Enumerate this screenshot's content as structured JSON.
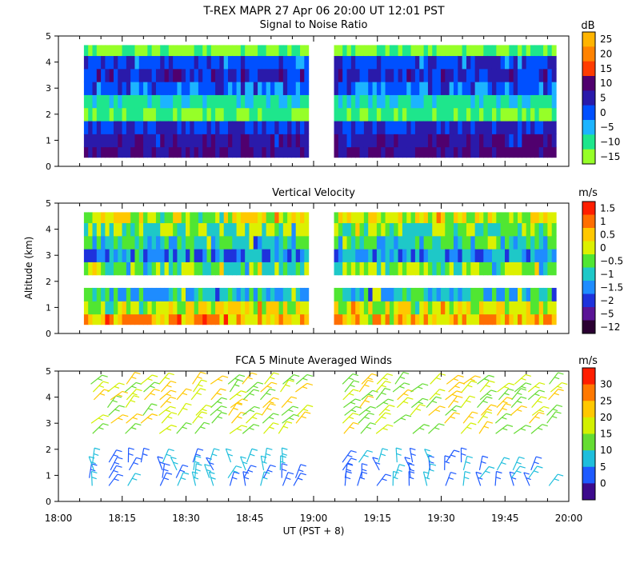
{
  "header": {
    "title": "T-REX   MAPR 27 Apr 06   20:00 UT   12:01   PST"
  },
  "shared_axes": {
    "x_label": "UT  (PST + 8)",
    "x_range_hours": [
      18.0,
      20.0
    ],
    "x_tick_labels": [
      "18:00",
      "18:15",
      "18:30",
      "18:45",
      "19:00",
      "19:15",
      "19:30",
      "19:45",
      "20:00"
    ],
    "x_tick_values": [
      18.0,
      18.25,
      18.5,
      18.75,
      19.0,
      19.25,
      19.5,
      19.75,
      20.0
    ],
    "y_label": "Altitude (km)",
    "y_range": [
      0,
      5
    ],
    "y_tick_labels": [
      "0",
      "1",
      "2",
      "3",
      "4",
      "5"
    ],
    "data_gap_hours": [
      18.98,
      19.08
    ]
  },
  "chart_data": [
    {
      "type": "heatmap",
      "title": "Signal to Noise Ratio",
      "units": "dB",
      "colorbar_labels": [
        "25",
        "20",
        "15",
        "10",
        "5",
        "0",
        "−5",
        "−10",
        "−15"
      ],
      "colorbar_values": [
        25,
        20,
        15,
        10,
        5,
        0,
        -5,
        -10,
        -15
      ],
      "colorbar_colors": [
        "#ffb400",
        "#ff8200",
        "#ff3c00",
        "#50006e",
        "#2a1aaa",
        "#0050ff",
        "#1cb4ff",
        "#1ee68c",
        "#96ff28"
      ],
      "profile": [
        {
          "alt_km": 0.5,
          "value": 8
        },
        {
          "alt_km": 1.0,
          "value": 6
        },
        {
          "alt_km": 1.5,
          "value": 3
        },
        {
          "alt_km": 2.0,
          "value": -12
        },
        {
          "alt_km": 2.5,
          "value": -8
        },
        {
          "alt_km": 3.0,
          "value": 0
        },
        {
          "alt_km": 3.5,
          "value": 4
        },
        {
          "alt_km": 4.0,
          "value": 1
        },
        {
          "alt_km": 4.5,
          "value": -13
        }
      ]
    },
    {
      "type": "heatmap",
      "title": "Vertical Velocity",
      "units": "m/s",
      "colorbar_labels": [
        "1.5",
        "1",
        "0.5",
        "0",
        "−0.5",
        "−1",
        "−1.5",
        "−2",
        "−5",
        "−12"
      ],
      "colorbar_values": [
        1.5,
        1,
        0.5,
        0,
        -0.5,
        -1,
        -1.5,
        -2,
        -5,
        -12
      ],
      "colorbar_colors": [
        "#ff1e00",
        "#ff6e00",
        "#ffc800",
        "#dcf000",
        "#50e632",
        "#1ec8c8",
        "#1e8cff",
        "#1e32dc",
        "#5a1496",
        "#2a0032"
      ],
      "profile": [
        {
          "alt_km": 0.5,
          "value": 0.5
        },
        {
          "alt_km": 1.0,
          "value": 0
        },
        {
          "alt_km": 1.5,
          "value": -1
        },
        {
          "alt_km": 2.5,
          "value": -0.5
        },
        {
          "alt_km": 3.0,
          "value": -1.5
        },
        {
          "alt_km": 3.5,
          "value": -1
        },
        {
          "alt_km": 4.0,
          "value": -0.5
        },
        {
          "alt_km": 4.5,
          "value": 0
        }
      ]
    },
    {
      "type": "scatter",
      "title": "FCA 5 Minute Averaged Winds",
      "units": "m/s",
      "colorbar_labels": [
        "30",
        "25",
        "20",
        "15",
        "10",
        "5",
        "0"
      ],
      "colorbar_values": [
        30,
        25,
        20,
        15,
        10,
        5,
        0
      ],
      "colorbar_colors": [
        "#ff1e00",
        "#ff7800",
        "#ffc800",
        "#d2f000",
        "#64dc32",
        "#1ebedc",
        "#1e5aff",
        "#3c0a8c"
      ],
      "barb_times_first_segment": [
        18.13,
        18.2,
        18.27,
        18.33,
        18.4,
        18.47,
        18.53,
        18.6,
        18.67,
        18.73,
        18.8,
        18.87,
        18.93
      ],
      "barb_times_second_segment": [
        19.12,
        19.18,
        19.25,
        19.32,
        19.38,
        19.45,
        19.52,
        19.58,
        19.65,
        19.72,
        19.78,
        19.85,
        19.92
      ],
      "barb_levels_km": [
        0.6,
        0.9,
        1.2,
        1.5,
        2.6,
        3.0,
        3.3,
        3.6,
        3.9,
        4.2,
        4.5
      ]
    }
  ]
}
